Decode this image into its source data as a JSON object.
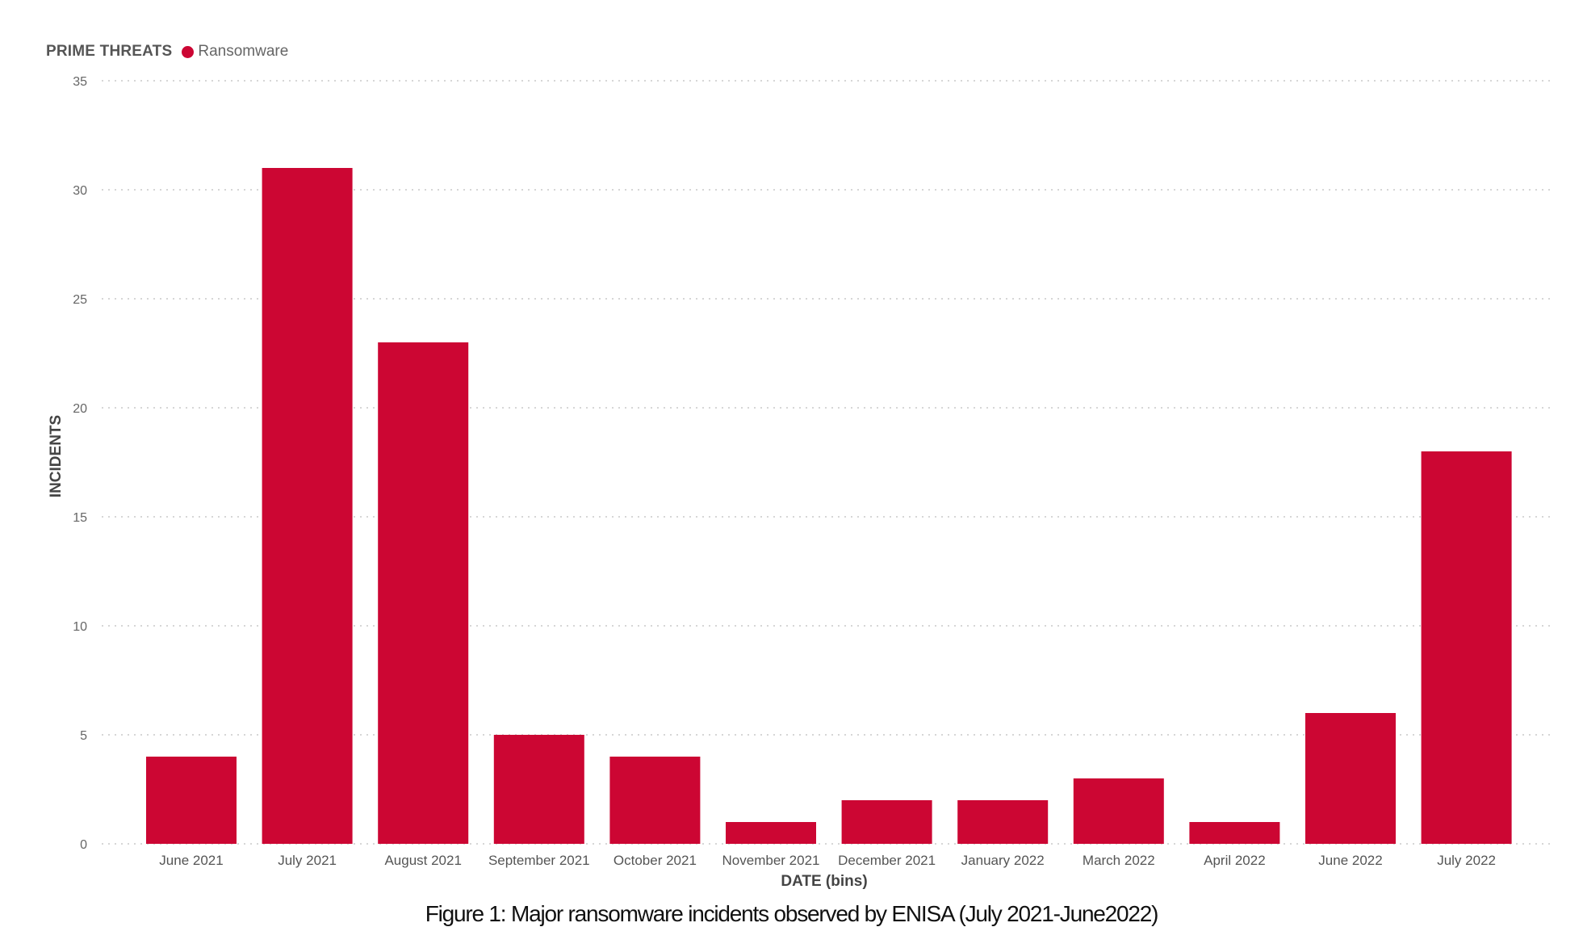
{
  "legend": {
    "title": "PRIME THREATS",
    "item_label": "Ransomware"
  },
  "caption": "Figure 1: Major  ransomware incidents observed by ENISA (July 2021-June2022)",
  "colors": {
    "bar": "#cc0633",
    "grid": "#c8c8c8",
    "text": "#666666"
  },
  "chart_data": {
    "type": "bar",
    "title": "",
    "xlabel": "DATE (bins)",
    "ylabel": "INCIDENTS",
    "categories": [
      "June 2021",
      "July 2021",
      "August 2021",
      "September 2021",
      "October 2021",
      "November 2021",
      "December 2021",
      "January 2022",
      "March 2022",
      "April 2022",
      "June 2022",
      "July 2022"
    ],
    "series": [
      {
        "name": "Ransomware",
        "values": [
          4,
          31,
          23,
          5,
          4,
          1,
          2,
          2,
          3,
          1,
          6,
          18
        ]
      }
    ],
    "ylim": [
      0,
      35
    ],
    "yticks": [
      0,
      5,
      10,
      15,
      20,
      25,
      30,
      35
    ],
    "grid": true,
    "legend_position": "top-left"
  }
}
